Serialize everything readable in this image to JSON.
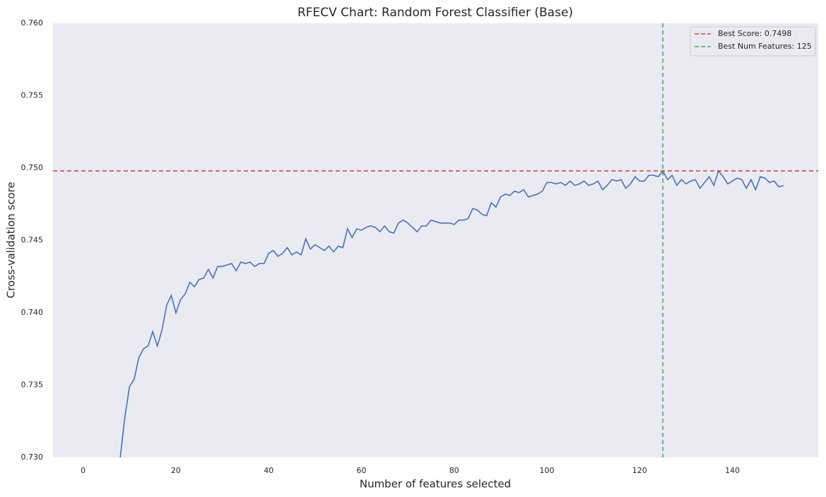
{
  "chart_data": {
    "type": "line",
    "title": "RFECV Chart: Random Forest Classifier (Base)",
    "x_label": "Number of features selected",
    "y_label": "Cross-validation score",
    "x": [
      8,
      9,
      10,
      11,
      12,
      13,
      14,
      15,
      16,
      17,
      18,
      19,
      20,
      21,
      22,
      23,
      24,
      25,
      26,
      27,
      28,
      29,
      30,
      31,
      32,
      33,
      34,
      35,
      36,
      37,
      38,
      39,
      40,
      41,
      42,
      43,
      44,
      45,
      46,
      47,
      48,
      49,
      50,
      51,
      52,
      53,
      54,
      55,
      56,
      57,
      58,
      59,
      60,
      61,
      62,
      63,
      64,
      65,
      66,
      67,
      68,
      69,
      70,
      71,
      72,
      73,
      74,
      75,
      76,
      77,
      78,
      79,
      80,
      81,
      82,
      83,
      84,
      85,
      86,
      87,
      88,
      89,
      90,
      91,
      92,
      93,
      94,
      95,
      96,
      97,
      98,
      99,
      100,
      101,
      102,
      103,
      104,
      105,
      106,
      107,
      108,
      109,
      110,
      111,
      112,
      113,
      114,
      115,
      116,
      117,
      118,
      119,
      120,
      121,
      122,
      123,
      124,
      125,
      126,
      127,
      128,
      129,
      130,
      131,
      132,
      133,
      134,
      135,
      136,
      137,
      138,
      139,
      140,
      141,
      142,
      143,
      144,
      145,
      146,
      147,
      148,
      149,
      150,
      151
    ],
    "series": [
      {
        "color": "#4c72b0",
        "values": [
          0.73,
          0.7328,
          0.7349,
          0.7354,
          0.7369,
          0.7375,
          0.7377,
          0.7387,
          0.7377,
          0.7388,
          0.7405,
          0.7412,
          0.74,
          0.7409,
          0.7413,
          0.7421,
          0.7418,
          0.7423,
          0.7424,
          0.743,
          0.7424,
          0.7432,
          0.7432,
          0.7433,
          0.7434,
          0.7429,
          0.7435,
          0.7434,
          0.7435,
          0.7432,
          0.7434,
          0.7434,
          0.7441,
          0.7443,
          0.7439,
          0.7441,
          0.7445,
          0.744,
          0.7442,
          0.744,
          0.7451,
          0.7444,
          0.7447,
          0.7445,
          0.7443,
          0.7446,
          0.7442,
          0.7446,
          0.7445,
          0.7458,
          0.7452,
          0.7458,
          0.7457,
          0.7459,
          0.746,
          0.7459,
          0.7456,
          0.746,
          0.7456,
          0.7455,
          0.7462,
          0.7464,
          0.7462,
          0.7459,
          0.7456,
          0.746,
          0.746,
          0.7464,
          0.7463,
          0.7462,
          0.7462,
          0.7462,
          0.7461,
          0.7464,
          0.7464,
          0.7465,
          0.7472,
          0.7471,
          0.7468,
          0.7467,
          0.7476,
          0.7473,
          0.748,
          0.7482,
          0.7481,
          0.7484,
          0.7483,
          0.7485,
          0.748,
          0.7481,
          0.7482,
          0.7484,
          0.749,
          0.749,
          0.7489,
          0.749,
          0.7488,
          0.7491,
          0.7488,
          0.7489,
          0.7491,
          0.7488,
          0.7489,
          0.7491,
          0.7485,
          0.7488,
          0.7492,
          0.7491,
          0.7492,
          0.7486,
          0.7489,
          0.7494,
          0.7491,
          0.7491,
          0.7495,
          0.7495,
          0.7494,
          0.7498,
          0.7492,
          0.7495,
          0.7488,
          0.7492,
          0.7489,
          0.7491,
          0.7492,
          0.7486,
          0.749,
          0.7494,
          0.7488,
          0.7498,
          0.7494,
          0.7489,
          0.7491,
          0.7493,
          0.7492,
          0.7486,
          0.7492,
          0.7485,
          0.7494,
          0.7493,
          0.749,
          0.7491,
          0.7487,
          0.7488
        ]
      }
    ],
    "reference_lines": [
      {
        "name": "Best Score: 0.7498",
        "axis": "y",
        "value": 0.7498,
        "color": "#c44e52"
      },
      {
        "name": "Best Num Features: 125",
        "axis": "x",
        "value": 125,
        "color": "#55a868"
      }
    ],
    "xlim": [
      -6.5,
      158.5
    ],
    "xticks": [
      0,
      20,
      40,
      60,
      80,
      100,
      120,
      140
    ],
    "ylim": [
      0.73,
      0.76
    ],
    "yticks": [
      {
        "value": 0.73,
        "label": "0.730"
      },
      0.735,
      {
        "value": 0.74,
        "label": "0.740"
      },
      0.745,
      {
        "value": 0.75,
        "label": "0.750"
      },
      0.755,
      {
        "value": 0.76,
        "label": "0.760"
      }
    ],
    "legend": "upper right",
    "background": "#eaeaf2"
  }
}
